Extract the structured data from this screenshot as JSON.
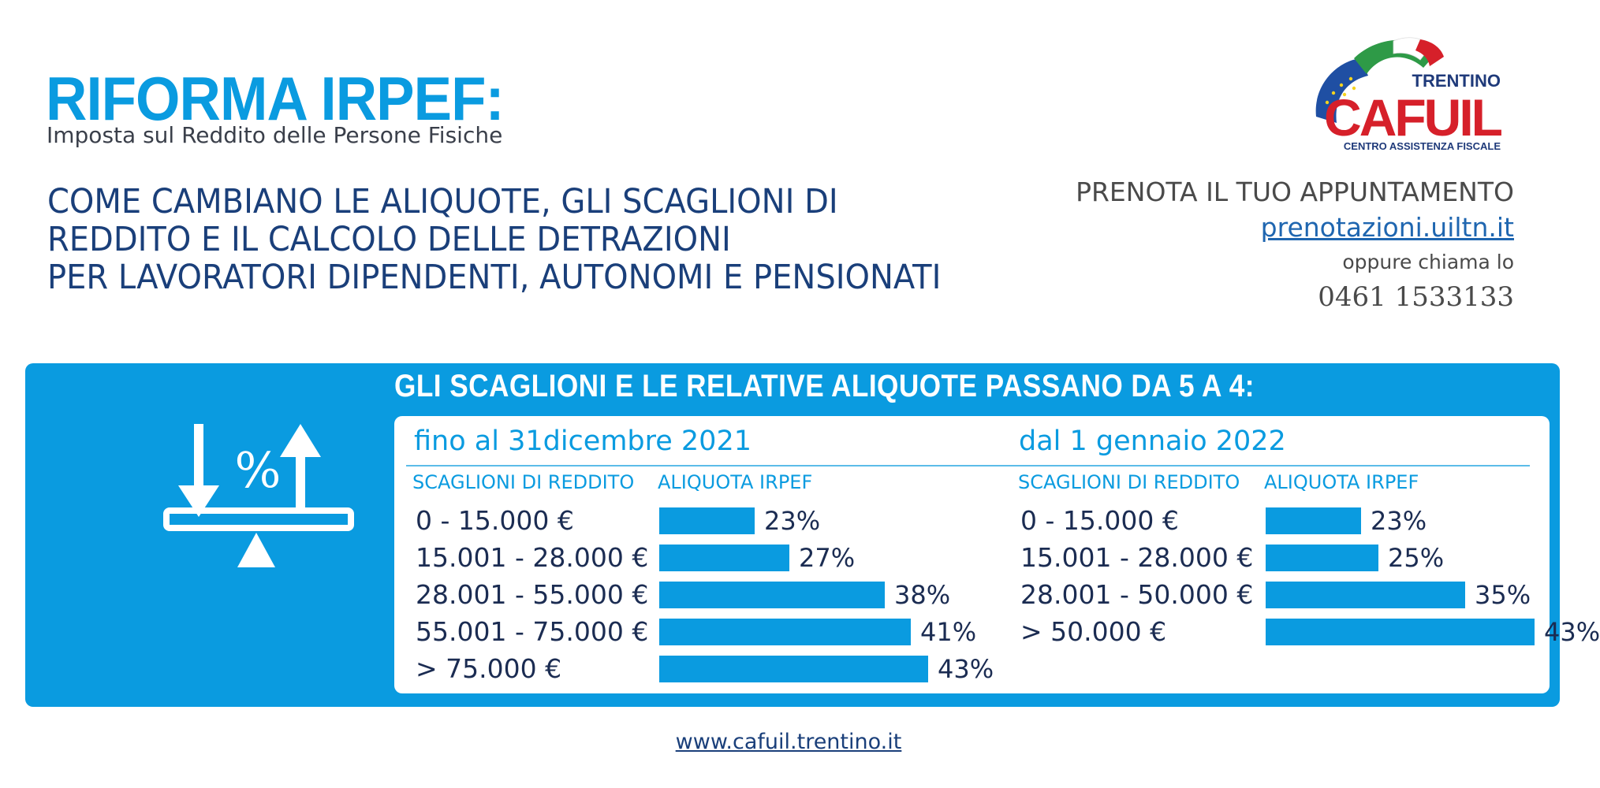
{
  "header": {
    "title": "RIFORMA IRPEF:",
    "subtitle": "Imposta sul Reddito delle Persone Fisiche",
    "headline_lines": [
      "COME CAMBIANO LE ALIQUOTE, GLI SCAGLIONI DI",
      "REDDITO E IL CALCOLO DELLE DETRAZIONI",
      "PER LAVORATORI DIPENDENTI, AUTONOMI E PENSIONATI"
    ]
  },
  "logo": {
    "top_text": "TRENTINO",
    "brand": "CAFUIL",
    "tagline": "CENTRO ASSISTENZA FISCALE"
  },
  "booking": {
    "cta": "PRENOTA IL TUO APPUNTAMENTO",
    "link": "prenotazioni.uiltn.it",
    "or_text": "oppure chiama lo",
    "phone": "0461 1533133"
  },
  "footer": {
    "website": "www.cafuil.trentino.it"
  },
  "colors": {
    "accent": "#0a9be0",
    "text_dark": "#1b2c52",
    "headline": "#1a3f7a"
  },
  "icons": [
    "scale-percent-icon"
  ],
  "chart_data": [
    {
      "type": "bar",
      "orientation": "horizontal",
      "title": "GLI SCAGLIONI E LE RELATIVE ALIQUOTE PASSANO DA 5 A 4:",
      "subtitle": "fino al 31dicembre 2021",
      "category_header": "SCAGLIONI DI REDDITO",
      "value_header": "ALIQUOTA IRPEF",
      "categories": [
        "0 - 15.000 €",
        "15.001 - 28.000 €",
        "28.001 - 55.000 €",
        "55.001 - 75.000 €",
        "> 75.000 €"
      ],
      "values": [
        23,
        27,
        38,
        41,
        43
      ],
      "value_labels": [
        "23%",
        "27%",
        "38%",
        "41%",
        "43%"
      ],
      "unit": "%"
    },
    {
      "type": "bar",
      "orientation": "horizontal",
      "subtitle": "dal 1 gennaio 2022",
      "category_header": "SCAGLIONI DI REDDITO",
      "value_header": "ALIQUOTA IRPEF",
      "categories": [
        "0 - 15.000 €",
        "15.001 - 28.000 €",
        "28.001 - 50.000 €",
        "> 50.000 €"
      ],
      "values": [
        23,
        25,
        35,
        43
      ],
      "value_labels": [
        "23%",
        "25%",
        "35%",
        "43%"
      ],
      "unit": "%"
    }
  ]
}
